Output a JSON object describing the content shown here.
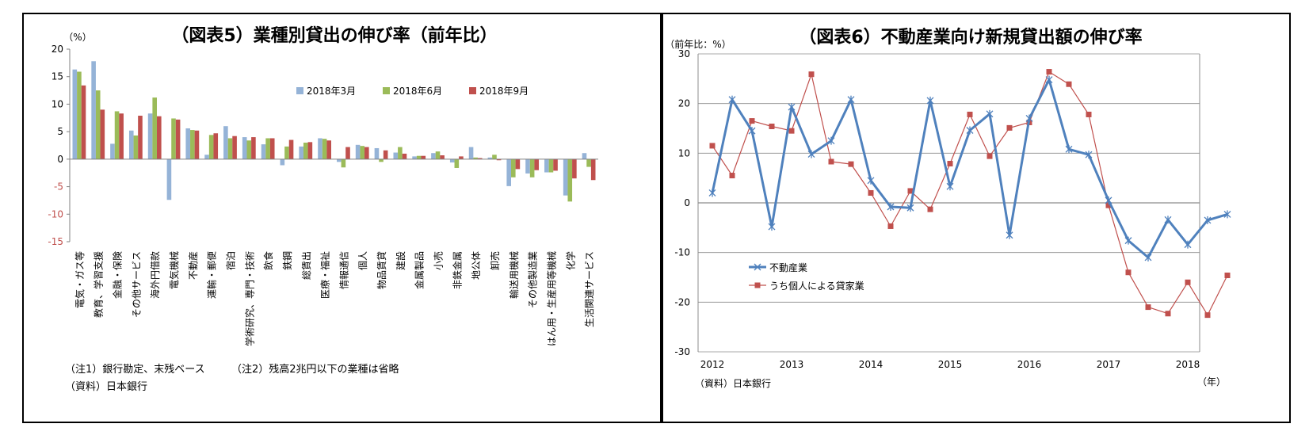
{
  "left": {
    "title": "（図表5）業種別貸出の伸び率（前年比）",
    "unit": "（%）",
    "note1": "（注1）銀行勘定、末残ベース",
    "note2": "（注2）残高2兆円以下の業種は省略",
    "source": "（資料）日本銀行"
  },
  "right": {
    "title": "（図表6）不動産業向け新規貸出額の伸び率",
    "unit": "（前年比：%）",
    "source": "（資料）日本銀行",
    "year_unit": "（年）"
  },
  "chart_data": [
    {
      "type": "bar",
      "title": "（図表5）業種別貸出の伸び率（前年比）",
      "ylabel": "（%）",
      "ylim": [
        -15,
        20
      ],
      "yticks": [
        20,
        15,
        10,
        5,
        0,
        -5,
        -10,
        -15
      ],
      "grid": false,
      "legend_position": "top-right",
      "categories": [
        "電気・ガス等",
        "教育、学習支援",
        "金融・保険",
        "その他サービス",
        "海外円借款",
        "電気機械",
        "不動産",
        "運輸・郵便",
        "宿泊",
        "学術研究、専門・技術",
        "飲食",
        "鉄鋼",
        "総賃出",
        "医療・福祉",
        "情報通信",
        "個人",
        "物品賃貸",
        "建設",
        "金属製品",
        "小売",
        "非鉄金属",
        "地公体",
        "卸売",
        "輸送用機械",
        "その他製造業",
        "はん用・生産用等機械",
        "化学",
        "生活関連サービス"
      ],
      "series": [
        {
          "name": "2018年3月",
          "color": "#95b3d7",
          "values": [
            16.3,
            17.8,
            2.8,
            5.2,
            8.3,
            -7.4,
            5.6,
            0.8,
            6.0,
            4.0,
            2.7,
            -1.1,
            2.3,
            3.8,
            -0.5,
            2.6,
            2.0,
            1.2,
            0.5,
            1.1,
            -0.6,
            2.2,
            0.3,
            -4.9,
            -2.6,
            -2.4,
            -6.6,
            1.1
          ]
        },
        {
          "name": "2018年6月",
          "color": "#9bbb59",
          "values": [
            15.9,
            12.5,
            8.7,
            4.3,
            11.2,
            7.4,
            5.3,
            4.4,
            3.8,
            3.4,
            3.8,
            2.3,
            3.0,
            3.7,
            -1.5,
            2.4,
            -0.5,
            2.2,
            0.6,
            1.4,
            -1.6,
            0.3,
            0.8,
            -3.3,
            -3.3,
            -2.4,
            -7.7,
            -1.4
          ]
        },
        {
          "name": "2018年9月",
          "color": "#c0504d",
          "values": [
            13.4,
            9.0,
            8.3,
            7.9,
            7.8,
            7.2,
            5.2,
            4.7,
            4.2,
            4.0,
            3.8,
            3.5,
            3.1,
            3.4,
            2.2,
            2.2,
            1.6,
            1.0,
            0.6,
            0.7,
            0.5,
            0.2,
            -0.2,
            -1.8,
            -2.0,
            -2.1,
            -3.5,
            -3.8
          ]
        }
      ]
    },
    {
      "type": "line",
      "title": "（図表6）不動産業向け新規貸出額の伸び率",
      "ylabel": "（前年比：%）",
      "xlabel": "（年）",
      "ylim": [
        -30,
        30
      ],
      "yticks": [
        30,
        20,
        10,
        0,
        -10,
        -20,
        -30
      ],
      "x_tick_labels": [
        "2012",
        "2013",
        "2014",
        "2015",
        "2016",
        "2017",
        "2018"
      ],
      "x_start_year": 2012,
      "grid": true,
      "legend_position": "left-middle",
      "x": [
        2012.0,
        2012.25,
        2012.5,
        2012.75,
        2013.0,
        2013.25,
        2013.5,
        2013.75,
        2014.0,
        2014.25,
        2014.5,
        2014.75,
        2015.0,
        2015.25,
        2015.5,
        2015.75,
        2016.0,
        2016.25,
        2016.5,
        2016.75,
        2017.0,
        2017.25,
        2017.5,
        2017.75,
        2018.0,
        2018.25,
        2018.5
      ],
      "series": [
        {
          "name": "不動産業",
          "color": "#4f81bd",
          "marker": "star",
          "values": [
            2,
            20.8,
            14.5,
            -4.8,
            19.3,
            9.8,
            12.5,
            20.8,
            4.5,
            -0.8,
            -1.0,
            20.6,
            3.3,
            14.6,
            17.9,
            -6.5,
            17.0,
            24.8,
            10.8,
            9.7,
            0.5,
            -7.6,
            -11.0,
            -3.4,
            -8.4,
            -3.5,
            -2.3
          ]
        },
        {
          "name": "うち個人による貸家業",
          "color": "#c0504d",
          "marker": "square",
          "values": [
            11.5,
            5.5,
            16.5,
            15.4,
            14.5,
            25.9,
            8.3,
            7.8,
            2.0,
            -4.7,
            2.4,
            -1.3,
            7.9,
            17.8,
            9.4,
            15.1,
            16.2,
            26.4,
            23.9,
            17.8,
            -0.5,
            -14.0,
            -21.0,
            -22.3,
            -16.0,
            -22.6,
            -14.6
          ]
        }
      ]
    }
  ]
}
